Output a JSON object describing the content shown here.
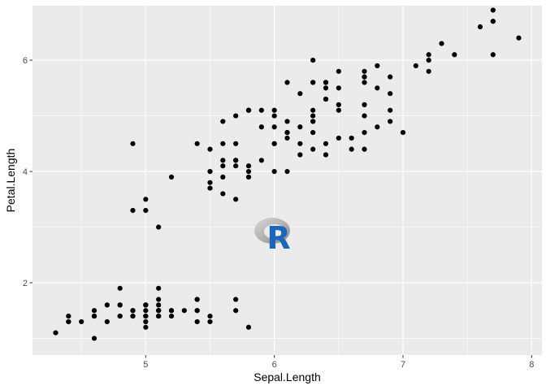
{
  "chart_data": {
    "type": "scatter",
    "xlabel": "Sepal.Length",
    "ylabel": "Petal.Length",
    "xlim": [
      4.12,
      8.08
    ],
    "ylim": [
      0.7,
      6.98
    ],
    "x_ticks": [
      5,
      6,
      7,
      8
    ],
    "y_ticks": [
      2,
      4,
      6
    ],
    "grid": true,
    "panel_background": "#ebebeb",
    "grid_color": "#ffffff",
    "point_color": "#000000",
    "watermark": "R",
    "points": [
      [
        5.1,
        1.4
      ],
      [
        4.9,
        1.4
      ],
      [
        4.7,
        1.3
      ],
      [
        4.6,
        1.5
      ],
      [
        5.0,
        1.4
      ],
      [
        5.4,
        1.7
      ],
      [
        4.6,
        1.4
      ],
      [
        5.0,
        1.5
      ],
      [
        4.4,
        1.4
      ],
      [
        4.9,
        1.5
      ],
      [
        5.4,
        1.5
      ],
      [
        4.8,
        1.6
      ],
      [
        4.8,
        1.4
      ],
      [
        4.3,
        1.1
      ],
      [
        5.8,
        1.2
      ],
      [
        5.7,
        1.5
      ],
      [
        5.4,
        1.3
      ],
      [
        5.1,
        1.4
      ],
      [
        5.7,
        1.7
      ],
      [
        5.1,
        1.5
      ],
      [
        5.4,
        1.7
      ],
      [
        5.1,
        1.5
      ],
      [
        4.6,
        1.0
      ],
      [
        5.1,
        1.7
      ],
      [
        4.8,
        1.9
      ],
      [
        5.0,
        1.6
      ],
      [
        5.0,
        1.6
      ],
      [
        5.2,
        1.5
      ],
      [
        5.2,
        1.4
      ],
      [
        4.7,
        1.6
      ],
      [
        4.8,
        1.6
      ],
      [
        5.4,
        1.5
      ],
      [
        5.2,
        1.5
      ],
      [
        5.5,
        1.4
      ],
      [
        4.9,
        1.5
      ],
      [
        5.0,
        1.2
      ],
      [
        5.5,
        1.3
      ],
      [
        4.9,
        1.4
      ],
      [
        4.4,
        1.3
      ],
      [
        5.1,
        1.5
      ],
      [
        5.0,
        1.3
      ],
      [
        4.5,
        1.3
      ],
      [
        4.4,
        1.3
      ],
      [
        5.0,
        1.6
      ],
      [
        5.1,
        1.9
      ],
      [
        4.8,
        1.4
      ],
      [
        5.1,
        1.6
      ],
      [
        4.6,
        1.4
      ],
      [
        5.3,
        1.5
      ],
      [
        5.0,
        1.4
      ],
      [
        7.0,
        4.7
      ],
      [
        6.4,
        4.5
      ],
      [
        6.9,
        4.9
      ],
      [
        5.5,
        4.0
      ],
      [
        6.5,
        4.6
      ],
      [
        5.7,
        4.5
      ],
      [
        6.3,
        4.7
      ],
      [
        4.9,
        3.3
      ],
      [
        6.6,
        4.6
      ],
      [
        5.2,
        3.9
      ],
      [
        5.0,
        3.5
      ],
      [
        5.9,
        4.2
      ],
      [
        6.0,
        4.0
      ],
      [
        6.1,
        4.7
      ],
      [
        5.6,
        3.6
      ],
      [
        6.7,
        4.4
      ],
      [
        5.6,
        4.5
      ],
      [
        5.8,
        4.1
      ],
      [
        6.2,
        4.5
      ],
      [
        5.6,
        3.9
      ],
      [
        5.9,
        4.8
      ],
      [
        6.1,
        4.0
      ],
      [
        6.3,
        4.9
      ],
      [
        6.1,
        4.7
      ],
      [
        6.4,
        4.3
      ],
      [
        6.6,
        4.4
      ],
      [
        6.8,
        4.8
      ],
      [
        6.7,
        5.0
      ],
      [
        6.0,
        4.5
      ],
      [
        5.7,
        3.5
      ],
      [
        5.5,
        3.8
      ],
      [
        5.5,
        3.7
      ],
      [
        5.8,
        3.9
      ],
      [
        6.0,
        5.1
      ],
      [
        5.4,
        4.5
      ],
      [
        6.0,
        4.5
      ],
      [
        6.7,
        4.7
      ],
      [
        6.3,
        4.4
      ],
      [
        5.6,
        4.1
      ],
      [
        5.5,
        4.0
      ],
      [
        5.5,
        4.4
      ],
      [
        6.1,
        4.6
      ],
      [
        5.8,
        4.0
      ],
      [
        5.0,
        3.3
      ],
      [
        5.6,
        4.2
      ],
      [
        5.7,
        4.2
      ],
      [
        5.7,
        4.2
      ],
      [
        6.2,
        4.3
      ],
      [
        5.1,
        3.0
      ],
      [
        5.7,
        4.1
      ],
      [
        6.3,
        6.0
      ],
      [
        5.8,
        5.1
      ],
      [
        7.1,
        5.9
      ],
      [
        6.3,
        5.6
      ],
      [
        6.5,
        5.8
      ],
      [
        7.6,
        6.6
      ],
      [
        4.9,
        4.5
      ],
      [
        7.3,
        6.3
      ],
      [
        6.7,
        5.8
      ],
      [
        7.2,
        6.1
      ],
      [
        6.5,
        5.1
      ],
      [
        6.4,
        5.3
      ],
      [
        6.8,
        5.5
      ],
      [
        5.7,
        5.0
      ],
      [
        5.8,
        5.1
      ],
      [
        6.4,
        5.3
      ],
      [
        6.5,
        5.5
      ],
      [
        7.7,
        6.7
      ],
      [
        7.7,
        6.9
      ],
      [
        6.0,
        5.0
      ],
      [
        6.9,
        5.7
      ],
      [
        5.6,
        4.9
      ],
      [
        7.7,
        6.7
      ],
      [
        6.3,
        4.9
      ],
      [
        6.7,
        5.7
      ],
      [
        7.2,
        6.0
      ],
      [
        6.2,
        4.8
      ],
      [
        6.1,
        4.9
      ],
      [
        6.4,
        5.6
      ],
      [
        7.2,
        5.8
      ],
      [
        7.4,
        6.1
      ],
      [
        7.9,
        6.4
      ],
      [
        6.4,
        5.6
      ],
      [
        6.3,
        5.1
      ],
      [
        6.1,
        5.6
      ],
      [
        7.7,
        6.1
      ],
      [
        6.3,
        5.6
      ],
      [
        6.4,
        5.5
      ],
      [
        6.0,
        4.8
      ],
      [
        6.9,
        5.4
      ],
      [
        6.7,
        5.6
      ],
      [
        6.9,
        5.1
      ],
      [
        5.8,
        5.1
      ],
      [
        6.8,
        5.9
      ],
      [
        6.7,
        5.7
      ],
      [
        6.7,
        5.2
      ],
      [
        6.3,
        5.0
      ],
      [
        6.5,
        5.2
      ],
      [
        6.2,
        5.4
      ],
      [
        5.9,
        5.1
      ]
    ]
  }
}
